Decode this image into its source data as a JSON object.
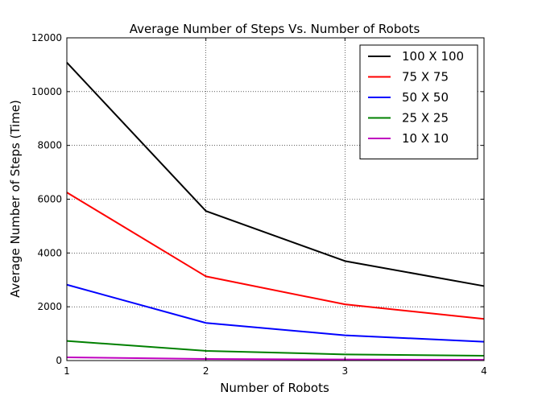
{
  "chart_data": {
    "type": "line",
    "title": "Average Number of Steps Vs. Number of Robots",
    "xlabel": "Number of Robots",
    "ylabel": "Average Number of Steps (Time)",
    "x": [
      1,
      2,
      3,
      4
    ],
    "xlim": [
      1,
      4
    ],
    "ylim": [
      0,
      12000
    ],
    "xticks": [
      "1",
      "2",
      "3",
      "4"
    ],
    "yticks": [
      "0",
      "2000",
      "4000",
      "6000",
      "8000",
      "10000",
      "12000"
    ],
    "grid": true,
    "legend_position": "top-right",
    "series": [
      {
        "name": "100 X 100",
        "color": "#000000",
        "values": [
          11080,
          5560,
          3700,
          2770
        ]
      },
      {
        "name": "75 X 75",
        "color": "#ff0000",
        "values": [
          6250,
          3130,
          2090,
          1550
        ]
      },
      {
        "name": "50 X 50",
        "color": "#0000ff",
        "values": [
          2820,
          1400,
          940,
          700
        ]
      },
      {
        "name": "25 X 25",
        "color": "#008000",
        "values": [
          730,
          360,
          230,
          180
        ]
      },
      {
        "name": "10 X 10",
        "color": "#bf00bf",
        "values": [
          120,
          60,
          40,
          30
        ]
      }
    ]
  }
}
